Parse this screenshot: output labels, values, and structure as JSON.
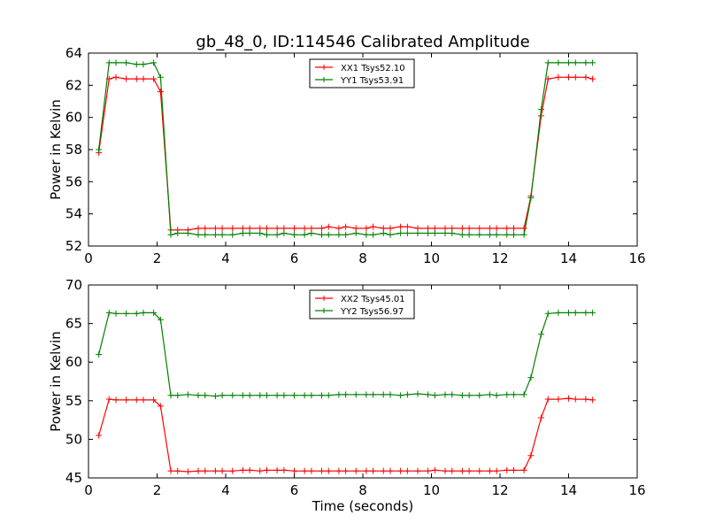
{
  "figure": {
    "title": "gb_48_0, ID:114546 Calibrated Amplitude"
  },
  "chart_data": [
    {
      "type": "line",
      "title": "gb_48_0, ID:114546 Calibrated Amplitude",
      "xlabel": "",
      "ylabel": "Power in Kelvin",
      "xlim": [
        0,
        16
      ],
      "ylim": [
        52,
        64
      ],
      "xticks": [
        0,
        2,
        4,
        6,
        8,
        10,
        12,
        14,
        16
      ],
      "yticks": [
        52,
        54,
        56,
        58,
        60,
        62,
        64
      ],
      "grid": false,
      "legend_position": "top-center",
      "x": [
        0.3,
        0.6,
        0.8,
        1.1,
        1.4,
        1.6,
        1.9,
        2.1,
        2.4,
        2.6,
        2.9,
        3.2,
        3.4,
        3.7,
        3.9,
        4.2,
        4.5,
        4.7,
        5.0,
        5.2,
        5.5,
        5.7,
        6.0,
        6.3,
        6.5,
        6.8,
        7.0,
        7.3,
        7.5,
        7.8,
        8.1,
        8.3,
        8.6,
        8.8,
        9.1,
        9.3,
        9.6,
        9.9,
        10.1,
        10.4,
        10.6,
        10.9,
        11.1,
        11.4,
        11.7,
        11.9,
        12.2,
        12.4,
        12.7,
        12.9,
        13.2,
        13.4,
        13.7,
        14.0,
        14.2,
        14.5,
        14.7
      ],
      "series": [
        {
          "name": "XX1 Tsys52.10",
          "color": "#ff0000",
          "values": [
            57.8,
            62.4,
            62.5,
            62.4,
            62.4,
            62.4,
            62.4,
            61.6,
            53.0,
            53.0,
            53.0,
            53.1,
            53.1,
            53.1,
            53.1,
            53.1,
            53.1,
            53.1,
            53.1,
            53.1,
            53.1,
            53.1,
            53.1,
            53.1,
            53.1,
            53.1,
            53.2,
            53.1,
            53.2,
            53.1,
            53.1,
            53.2,
            53.1,
            53.1,
            53.2,
            53.2,
            53.1,
            53.1,
            53.1,
            53.1,
            53.1,
            53.1,
            53.1,
            53.1,
            53.1,
            53.1,
            53.1,
            53.1,
            53.1,
            55.1,
            60.1,
            62.4,
            62.5,
            62.5,
            62.5,
            62.5,
            62.4
          ]
        },
        {
          "name": "YY1 Tsys53.91",
          "color": "#008000",
          "values": [
            58.0,
            63.4,
            63.4,
            63.4,
            63.3,
            63.3,
            63.4,
            62.5,
            52.7,
            52.8,
            52.8,
            52.7,
            52.7,
            52.7,
            52.7,
            52.7,
            52.8,
            52.8,
            52.8,
            52.7,
            52.7,
            52.8,
            52.7,
            52.7,
            52.8,
            52.7,
            52.7,
            52.7,
            52.7,
            52.8,
            52.7,
            52.7,
            52.8,
            52.7,
            52.8,
            52.8,
            52.8,
            52.8,
            52.8,
            52.8,
            52.8,
            52.7,
            52.7,
            52.7,
            52.7,
            52.7,
            52.7,
            52.7,
            52.7,
            55.0,
            60.5,
            63.4,
            63.4,
            63.4,
            63.4,
            63.4,
            63.4
          ]
        }
      ]
    },
    {
      "type": "line",
      "title": "",
      "xlabel": "Time (seconds)",
      "ylabel": "Power in Kelvin",
      "xlim": [
        0,
        16
      ],
      "ylim": [
        45,
        70
      ],
      "xticks": [
        0,
        2,
        4,
        6,
        8,
        10,
        12,
        14,
        16
      ],
      "yticks": [
        45,
        50,
        55,
        60,
        65,
        70
      ],
      "grid": false,
      "legend_position": "top-center",
      "x": [
        0.3,
        0.6,
        0.8,
        1.1,
        1.4,
        1.6,
        1.9,
        2.1,
        2.4,
        2.6,
        2.9,
        3.2,
        3.4,
        3.7,
        3.9,
        4.2,
        4.5,
        4.7,
        5.0,
        5.2,
        5.5,
        5.7,
        6.0,
        6.3,
        6.5,
        6.8,
        7.0,
        7.3,
        7.5,
        7.8,
        8.1,
        8.3,
        8.6,
        8.8,
        9.1,
        9.3,
        9.6,
        9.9,
        10.1,
        10.4,
        10.6,
        10.9,
        11.1,
        11.4,
        11.7,
        11.9,
        12.2,
        12.4,
        12.7,
        12.9,
        13.2,
        13.4,
        13.7,
        14.0,
        14.2,
        14.5,
        14.7
      ],
      "series": [
        {
          "name": "XX2 Tsys45.01",
          "color": "#ff0000",
          "values": [
            50.5,
            55.2,
            55.1,
            55.1,
            55.1,
            55.1,
            55.1,
            54.3,
            45.9,
            45.9,
            45.8,
            45.9,
            45.9,
            45.9,
            45.9,
            45.9,
            46.0,
            46.0,
            45.9,
            46.0,
            46.0,
            46.0,
            45.9,
            45.9,
            45.9,
            45.9,
            45.9,
            45.9,
            45.9,
            45.9,
            45.9,
            45.9,
            45.9,
            45.9,
            45.9,
            45.9,
            45.9,
            45.9,
            46.0,
            45.9,
            45.9,
            45.9,
            45.9,
            45.9,
            45.9,
            45.9,
            46.0,
            46.0,
            46.0,
            47.9,
            52.8,
            55.2,
            55.2,
            55.3,
            55.2,
            55.2,
            55.1
          ]
        },
        {
          "name": "YY2 Tsys56.97",
          "color": "#008000",
          "values": [
            61.0,
            66.4,
            66.3,
            66.3,
            66.3,
            66.4,
            66.4,
            65.5,
            55.7,
            55.7,
            55.8,
            55.7,
            55.7,
            55.6,
            55.7,
            55.7,
            55.7,
            55.7,
            55.7,
            55.7,
            55.7,
            55.7,
            55.7,
            55.7,
            55.7,
            55.7,
            55.7,
            55.8,
            55.8,
            55.8,
            55.8,
            55.8,
            55.8,
            55.8,
            55.7,
            55.8,
            55.9,
            55.8,
            55.7,
            55.8,
            55.8,
            55.7,
            55.7,
            55.7,
            55.8,
            55.7,
            55.8,
            55.8,
            55.8,
            58.0,
            63.6,
            66.3,
            66.4,
            66.4,
            66.4,
            66.4,
            66.4
          ]
        }
      ]
    }
  ]
}
